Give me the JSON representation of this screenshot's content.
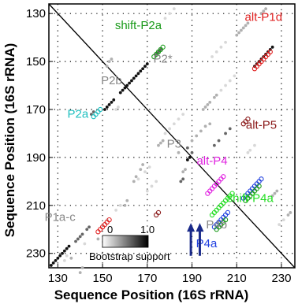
{
  "chart_data": {
    "type": "scatter",
    "title": "",
    "xlabel": "Sequence Position (16S rRNA)",
    "ylabel": "Sequence Position (16S rRNA)",
    "xlim": [
      126,
      236
    ],
    "ylim": [
      126,
      236
    ],
    "y_inverted": true,
    "xticks": [
      130,
      150,
      170,
      190,
      210,
      230
    ],
    "yticks": [
      130,
      150,
      170,
      190,
      210,
      230
    ],
    "grid": "dotted",
    "diagonal": true,
    "colorbar": {
      "label": "Bootstrap support",
      "min_label": "0",
      "max_label": "1.0",
      "colors": [
        "#ffffff",
        "#000000"
      ]
    },
    "annotations": [
      {
        "text": "shift-P2a",
        "x": 166,
        "y": 136.5,
        "color": "#1a9a1a"
      },
      {
        "text": "alt-P1d",
        "x": 222,
        "y": 133,
        "color": "#e02020"
      },
      {
        "text": "P2*",
        "x": 177,
        "y": 150.5,
        "color": "#888888"
      },
      {
        "text": "P2b",
        "x": 154,
        "y": 159.5,
        "color": "#888888"
      },
      {
        "text": "P2a",
        "x": 139,
        "y": 173.5,
        "color": "#20c0c0"
      },
      {
        "text": "alt-P5",
        "x": 221,
        "y": 178,
        "color": "#8b1a1a"
      },
      {
        "text": "P3",
        "x": 182,
        "y": 186,
        "color": "#888888"
      },
      {
        "text": "alt-P4",
        "x": 199,
        "y": 193,
        "color": "#e020e0"
      },
      {
        "text": "shift-P4a",
        "x": 216,
        "y": 208.5,
        "color": "#22dd22"
      },
      {
        "text": "P1a-c",
        "x": 131,
        "y": 216.5,
        "color": "#888888"
      },
      {
        "text": "P4b",
        "x": 201,
        "y": 219.5,
        "color": "#888888"
      },
      {
        "text": "P4a",
        "x": 196.5,
        "y": 227.5,
        "color": "#2040e0"
      }
    ],
    "arrows": [
      {
        "x": 189.5,
        "y_from": 231,
        "y_to": 218,
        "color": "#1a2a8a"
      },
      {
        "x": 193.5,
        "y_from": 231,
        "y_to": 218,
        "color": "#1a2a8a"
      }
    ],
    "series": [
      {
        "style": "filled",
        "color": "#111111",
        "points": [
          [
            127,
            235
          ],
          [
            128,
            234
          ],
          [
            129,
            233
          ],
          [
            130,
            232
          ],
          [
            131,
            231
          ],
          [
            132,
            230
          ],
          [
            133,
            229
          ],
          [
            134,
            228
          ],
          [
            135,
            227
          ],
          [
            151,
            170
          ],
          [
            152,
            169
          ],
          [
            153,
            168
          ],
          [
            154,
            167
          ],
          [
            155,
            166
          ],
          [
            158,
            163
          ],
          [
            159,
            162
          ],
          [
            160,
            161
          ],
          [
            161,
            160
          ],
          [
            162,
            159
          ],
          [
            163,
            158
          ],
          [
            164,
            157
          ],
          [
            165,
            156
          ],
          [
            166,
            155
          ],
          [
            167,
            154
          ],
          [
            168,
            153
          ],
          [
            169,
            152
          ],
          [
            170,
            151
          ],
          [
            188,
            191
          ],
          [
            189,
            190
          ],
          [
            218,
            152
          ],
          [
            219,
            151
          ],
          [
            220,
            150
          ],
          [
            221,
            149
          ],
          [
            222,
            148
          ],
          [
            223,
            147
          ],
          [
            224,
            146
          ],
          [
            225,
            145
          ],
          [
            226,
            144
          ]
        ]
      },
      {
        "style": "filled",
        "color": "#666666",
        "points": [
          [
            138,
            225
          ],
          [
            139,
            224
          ],
          [
            140,
            223
          ],
          [
            141,
            222
          ],
          [
            143,
            220
          ],
          [
            144,
            219
          ],
          [
            145,
            172
          ],
          [
            146,
            171
          ],
          [
            174,
            147
          ],
          [
            175,
            146
          ],
          [
            176,
            145
          ],
          [
            188,
            186
          ],
          [
            190,
            188
          ],
          [
            200,
            185
          ],
          [
            202,
            183
          ],
          [
            205,
            180
          ],
          [
            207,
            178
          ],
          [
            185,
            200
          ],
          [
            186,
            199
          ]
        ]
      },
      {
        "style": "filled",
        "color": "#b0b0b0",
        "points": [
          [
            140,
            238
          ],
          [
            141,
            236
          ],
          [
            136,
            232
          ],
          [
            148,
            224
          ],
          [
            160,
            210
          ],
          [
            161,
            208
          ],
          [
            164,
            200
          ],
          [
            165,
            198
          ],
          [
            167,
            195
          ],
          [
            168,
            193
          ],
          [
            175,
            185
          ],
          [
            176,
            184
          ],
          [
            177,
            183
          ],
          [
            195,
            170
          ],
          [
            196,
            169
          ],
          [
            197,
            168
          ],
          [
            198,
            167
          ],
          [
            200,
            165
          ],
          [
            201,
            164
          ],
          [
            152,
            152
          ],
          [
            153,
            150
          ],
          [
            154,
            149
          ],
          [
            210,
            139
          ],
          [
            211,
            138
          ],
          [
            212,
            137
          ],
          [
            213,
            136
          ],
          [
            214,
            135
          ],
          [
            215,
            134
          ],
          [
            221,
            130
          ],
          [
            222,
            129
          ],
          [
            223,
            128
          ],
          [
            233,
            214
          ],
          [
            234,
            213
          ],
          [
            226,
            206
          ],
          [
            227,
            205
          ],
          [
            228,
            204
          ],
          [
            186,
            196
          ],
          [
            187,
            195
          ],
          [
            184,
            188
          ],
          [
            190,
            183
          ],
          [
            192,
            181
          ],
          [
            194,
            179
          ],
          [
            196,
            177
          ],
          [
            198,
            176
          ]
        ]
      },
      {
        "style": "filled",
        "color": "#d8d8d8",
        "points": [
          [
            133,
            233
          ],
          [
            134,
            231
          ],
          [
            142,
            226
          ],
          [
            150,
            218
          ],
          [
            152,
            216
          ],
          [
            156,
            212
          ],
          [
            158,
            210
          ],
          [
            166,
            199
          ],
          [
            169,
            196
          ],
          [
            171,
            194
          ],
          [
            178,
            180
          ],
          [
            180,
            178
          ],
          [
            182,
            176
          ],
          [
            184,
            174
          ],
          [
            186,
            172
          ],
          [
            203,
            162
          ],
          [
            205,
            160
          ],
          [
            207,
            158
          ],
          [
            209,
            156
          ],
          [
            178,
            132
          ],
          [
            180,
            130
          ],
          [
            182,
            128
          ],
          [
            156,
            170
          ],
          [
            157,
            169
          ],
          [
            199,
            148
          ],
          [
            201,
            146
          ],
          [
            203,
            144
          ],
          [
            205,
            142
          ],
          [
            215,
            188
          ],
          [
            216,
            187
          ],
          [
            218,
            185
          ],
          [
            229,
            218
          ],
          [
            231,
            216
          ],
          [
            170,
            204
          ],
          [
            172,
            202
          ],
          [
            174,
            200
          ]
        ]
      },
      {
        "style": "hollow",
        "color": "#1a9a1a",
        "points": [
          [
            173,
            148
          ],
          [
            174,
            147
          ],
          [
            175,
            146
          ],
          [
            176,
            145
          ],
          [
            177,
            144
          ]
        ]
      },
      {
        "style": "hollow",
        "color": "#e02020",
        "points": [
          [
            218,
            153
          ],
          [
            219,
            152
          ],
          [
            220,
            151
          ],
          [
            221,
            150
          ],
          [
            222,
            149
          ],
          [
            223,
            148
          ],
          [
            224,
            147
          ],
          [
            225,
            146
          ],
          [
            148,
            221
          ],
          [
            149,
            220
          ],
          [
            150,
            219
          ],
          [
            151,
            218
          ],
          [
            152,
            217
          ],
          [
            153,
            216
          ]
        ]
      },
      {
        "style": "hollow",
        "color": "#20c0c0",
        "points": [
          [
            146,
            173
          ],
          [
            147,
            172
          ],
          [
            148,
            171
          ],
          [
            149,
            170
          ]
        ]
      },
      {
        "style": "hollow",
        "color": "#8b1a1a",
        "points": [
          [
            213,
            176
          ],
          [
            214,
            175
          ],
          [
            215,
            174
          ],
          [
            174,
            214
          ],
          [
            175,
            213
          ]
        ]
      },
      {
        "style": "hollow",
        "color": "#e020e0",
        "points": [
          [
            197,
            205
          ],
          [
            198,
            204
          ],
          [
            199,
            203
          ],
          [
            200,
            202
          ],
          [
            201,
            201
          ],
          [
            202,
            200
          ],
          [
            203,
            199
          ],
          [
            204,
            198
          ]
        ]
      },
      {
        "style": "hollow",
        "color": "#22dd22",
        "points": [
          [
            199,
            214
          ],
          [
            200,
            213
          ],
          [
            201,
            212
          ],
          [
            202,
            211
          ],
          [
            203,
            210
          ],
          [
            204,
            209
          ],
          [
            205,
            208
          ],
          [
            206,
            207
          ],
          [
            207,
            206
          ],
          [
            208,
            205
          ]
        ]
      },
      {
        "style": "hollow",
        "color": "#2040e0",
        "points": [
          [
            200,
            219
          ],
          [
            201,
            218
          ],
          [
            202,
            217
          ],
          [
            203,
            216
          ],
          [
            204,
            215
          ],
          [
            205,
            214
          ],
          [
            206,
            213
          ],
          [
            213,
            207
          ],
          [
            214,
            206
          ],
          [
            215,
            205
          ],
          [
            216,
            204
          ],
          [
            217,
            203
          ],
          [
            218,
            202
          ],
          [
            219,
            201
          ],
          [
            220,
            200
          ],
          [
            221,
            199
          ]
        ]
      },
      {
        "style": "hollow",
        "color": "#1a9a1a",
        "points": [
          [
            201,
            220
          ],
          [
            202,
            219
          ],
          [
            203,
            218
          ],
          [
            204,
            217
          ],
          [
            205,
            216
          ],
          [
            214,
            208
          ],
          [
            215,
            207
          ],
          [
            216,
            206
          ],
          [
            217,
            205
          ],
          [
            218,
            204
          ],
          [
            219,
            203
          ],
          [
            220,
            202
          ]
        ]
      }
    ]
  }
}
